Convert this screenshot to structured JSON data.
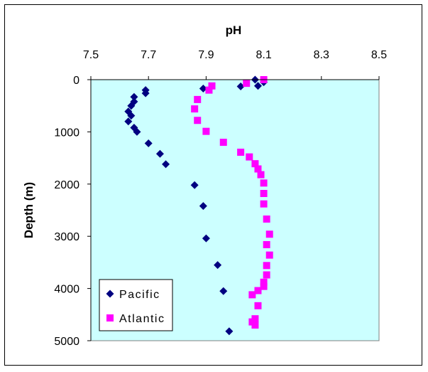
{
  "chart_data": {
    "type": "scatter",
    "title": "",
    "xlabel": "pH",
    "ylabel": "Depth (m)",
    "xlim": [
      7.5,
      8.5
    ],
    "ylim": [
      0,
      5000
    ],
    "x_ticks": [
      "7.5",
      "7.7",
      "7.9",
      "8.1",
      "8.3",
      "8.5"
    ],
    "y_ticks": [
      "0",
      "1000",
      "2000",
      "3000",
      "4000",
      "5000"
    ],
    "y_inverted": true,
    "x_axis_position": "top",
    "grid": false,
    "legend_position": "bottom-left",
    "plot_background": "#ccffff",
    "series": [
      {
        "name": "Pacific",
        "marker": "diamond",
        "color": "#000080",
        "points": [
          [
            8.07,
            0
          ],
          [
            8.1,
            50
          ],
          [
            8.08,
            120
          ],
          [
            8.02,
            130
          ],
          [
            7.89,
            170
          ],
          [
            7.69,
            200
          ],
          [
            7.69,
            260
          ],
          [
            7.65,
            330
          ],
          [
            7.65,
            420
          ],
          [
            7.64,
            500
          ],
          [
            7.63,
            610
          ],
          [
            7.64,
            690
          ],
          [
            7.63,
            800
          ],
          [
            7.65,
            920
          ],
          [
            7.66,
            1000
          ],
          [
            7.7,
            1220
          ],
          [
            7.74,
            1420
          ],
          [
            7.76,
            1620
          ],
          [
            7.86,
            2020
          ],
          [
            7.89,
            2420
          ],
          [
            7.9,
            3040
          ],
          [
            7.94,
            3550
          ],
          [
            7.96,
            4050
          ],
          [
            7.98,
            4820
          ]
        ]
      },
      {
        "name": "Atlantic",
        "marker": "square",
        "color": "#ff00ff",
        "points": [
          [
            8.1,
            0
          ],
          [
            8.04,
            70
          ],
          [
            7.92,
            120
          ],
          [
            7.91,
            200
          ],
          [
            7.87,
            380
          ],
          [
            7.86,
            560
          ],
          [
            7.87,
            780
          ],
          [
            7.9,
            990
          ],
          [
            7.96,
            1200
          ],
          [
            8.02,
            1390
          ],
          [
            8.05,
            1480
          ],
          [
            8.07,
            1610
          ],
          [
            8.08,
            1710
          ],
          [
            8.09,
            1820
          ],
          [
            8.1,
            1980
          ],
          [
            8.1,
            2180
          ],
          [
            8.1,
            2380
          ],
          [
            8.11,
            2670
          ],
          [
            8.12,
            2960
          ],
          [
            8.11,
            3160
          ],
          [
            8.12,
            3360
          ],
          [
            8.11,
            3560
          ],
          [
            8.11,
            3740
          ],
          [
            8.1,
            3880
          ],
          [
            8.1,
            3960
          ],
          [
            8.08,
            4040
          ],
          [
            8.06,
            4120
          ],
          [
            8.08,
            4330
          ],
          [
            8.07,
            4580
          ],
          [
            8.06,
            4640
          ],
          [
            8.07,
            4700
          ]
        ]
      }
    ]
  }
}
